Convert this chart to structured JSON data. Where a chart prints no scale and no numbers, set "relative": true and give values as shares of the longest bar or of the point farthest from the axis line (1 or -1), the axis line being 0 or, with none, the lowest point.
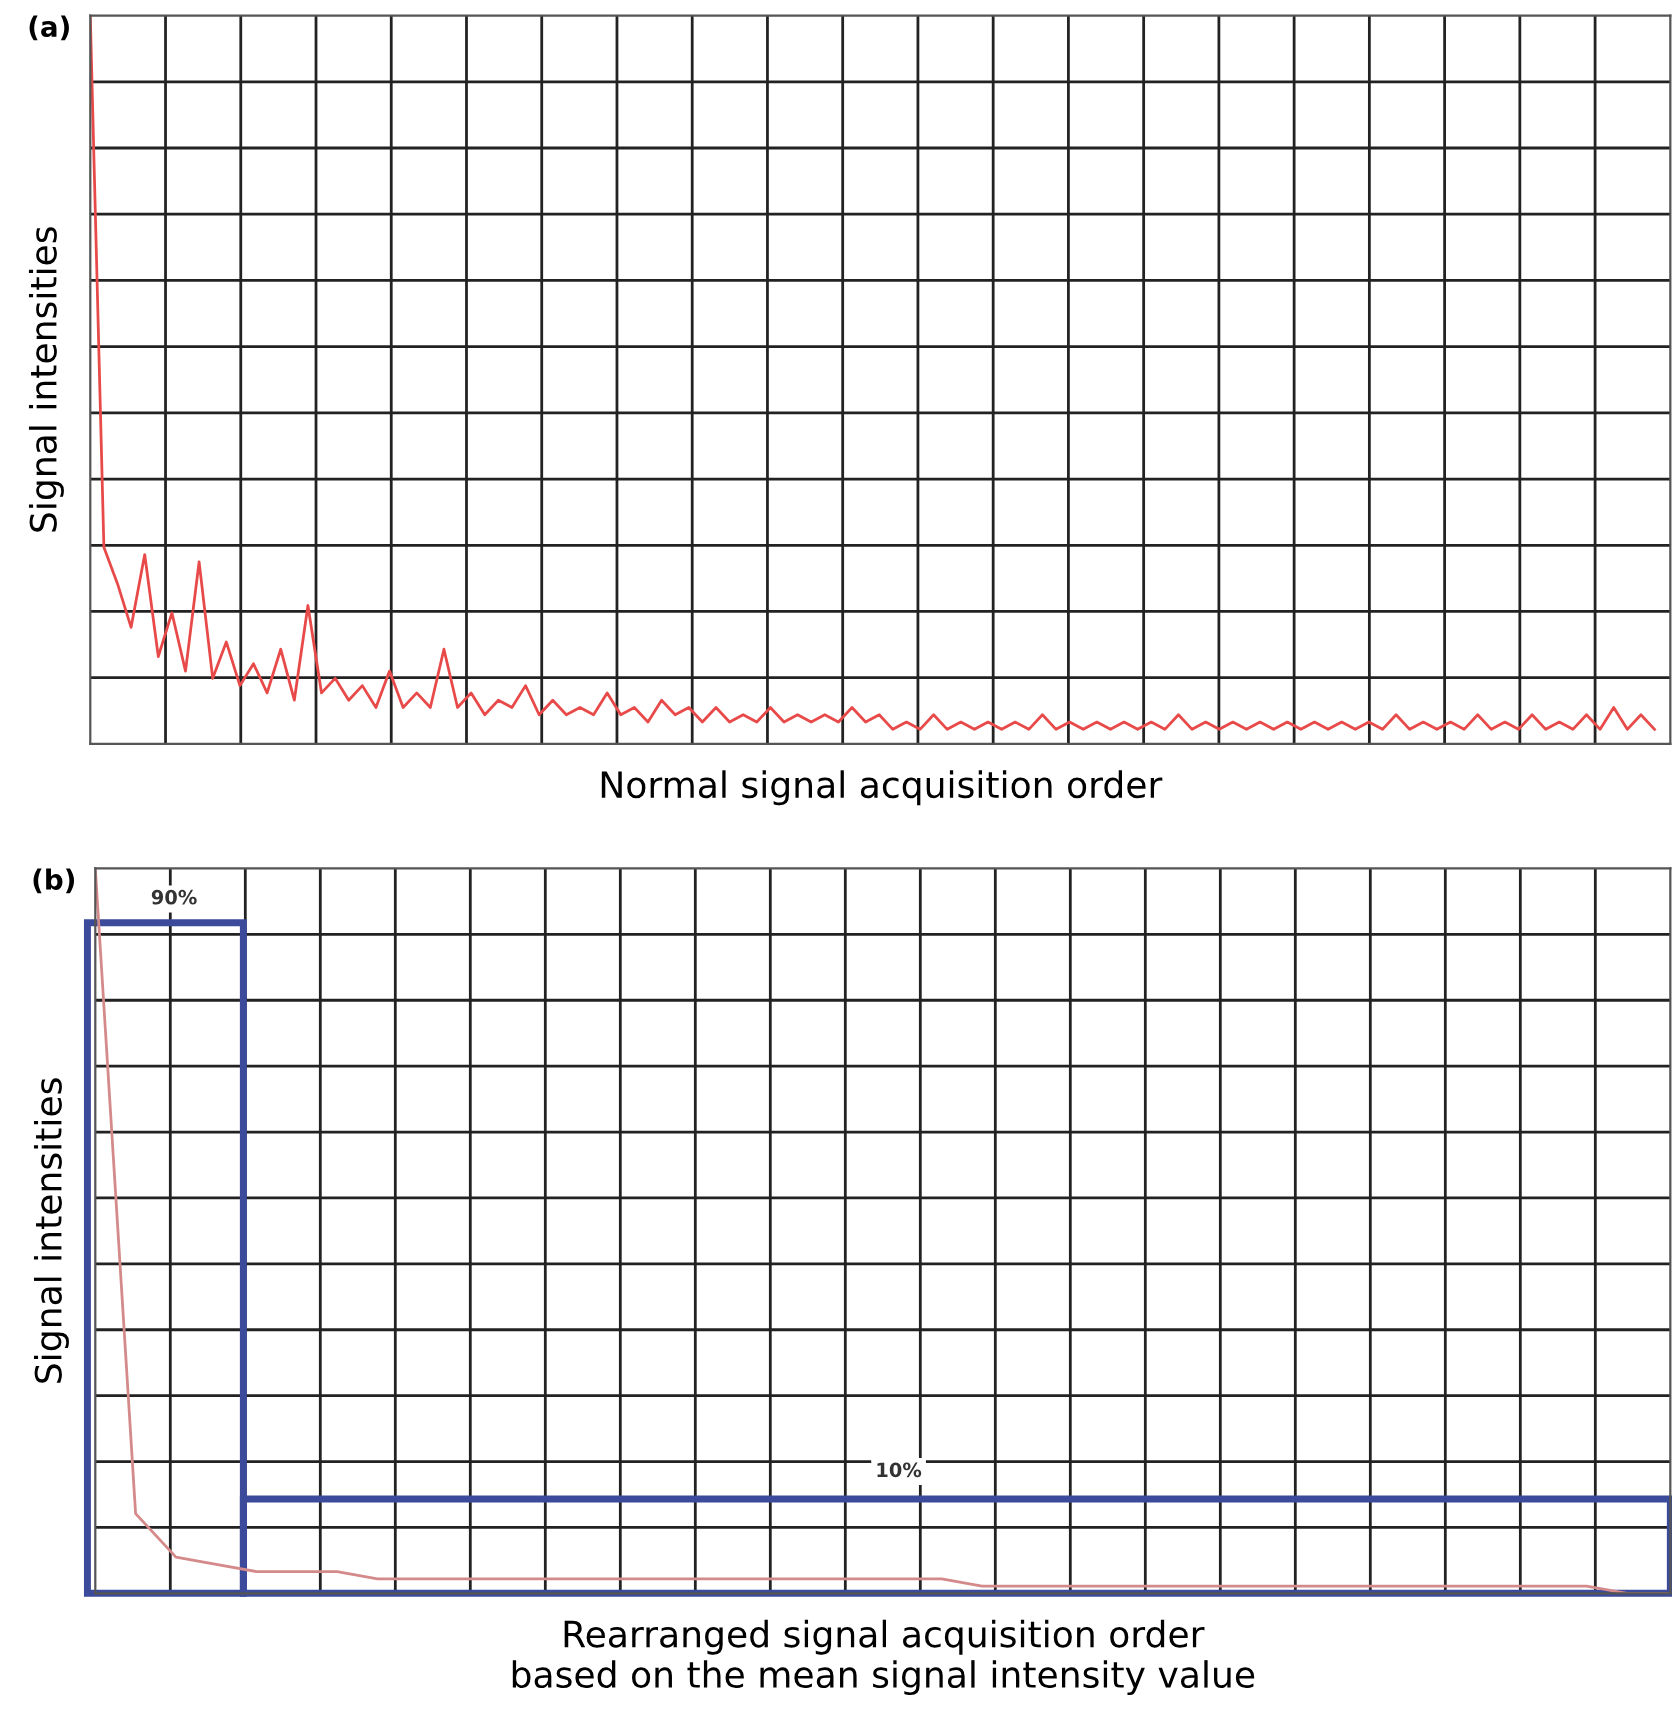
{
  "chart_data": [
    {
      "type": "line",
      "title": "(a)",
      "xlabel": "Normal signal acquisition order",
      "ylabel": "Signal intensities",
      "relative": true,
      "grid": true,
      "legend": false,
      "categories": [
        null,
        null,
        null,
        null,
        null,
        null,
        null,
        null,
        null,
        null,
        null,
        null,
        null,
        null,
        null,
        null,
        null,
        null,
        null,
        null,
        null,
        null,
        null,
        null,
        null,
        null,
        null,
        null,
        null,
        null,
        null,
        null,
        null,
        null,
        null,
        null,
        null,
        null,
        null,
        null,
        null,
        null,
        null,
        null,
        null,
        null,
        null,
        null,
        null,
        null,
        null,
        null,
        null,
        null,
        null,
        null,
        null,
        null,
        null,
        null,
        null,
        null,
        null,
        null,
        null,
        null,
        null,
        null,
        null,
        null,
        null,
        null,
        null,
        null,
        null,
        null,
        null,
        null,
        null,
        null,
        null,
        null,
        null,
        null,
        null,
        null,
        null,
        null,
        null,
        null,
        null,
        null,
        null,
        null,
        null,
        null,
        null,
        null,
        null,
        null,
        null,
        null,
        null,
        null,
        null,
        null,
        null,
        null,
        null,
        null,
        null,
        null,
        null,
        null,
        null,
        null
      ],
      "series": [
        {
          "color": "#e84a4a",
          "values": [
            1.0,
            0.27,
            0.22,
            0.16,
            0.26,
            0.12,
            0.18,
            0.1,
            0.25,
            0.09,
            0.14,
            0.08,
            0.11,
            0.07,
            0.13,
            0.06,
            0.19,
            0.07,
            0.09,
            0.06,
            0.08,
            0.05,
            0.1,
            0.05,
            0.07,
            0.05,
            0.13,
            0.05,
            0.07,
            0.04,
            0.06,
            0.05,
            0.08,
            0.04,
            0.06,
            0.04,
            0.05,
            0.04,
            0.07,
            0.04,
            0.05,
            0.03,
            0.06,
            0.04,
            0.05,
            0.03,
            0.05,
            0.03,
            0.04,
            0.03,
            0.05,
            0.03,
            0.04,
            0.03,
            0.04,
            0.03,
            0.05,
            0.03,
            0.04,
            0.02,
            0.03,
            0.02,
            0.04,
            0.02,
            0.03,
            0.02,
            0.03,
            0.02,
            0.03,
            0.02,
            0.04,
            0.02,
            0.03,
            0.02,
            0.03,
            0.02,
            0.03,
            0.02,
            0.03,
            0.02,
            0.04,
            0.02,
            0.03,
            0.02,
            0.03,
            0.02,
            0.03,
            0.02,
            0.03,
            0.02,
            0.03,
            0.02,
            0.03,
            0.02,
            0.03,
            0.02,
            0.04,
            0.02,
            0.03,
            0.02,
            0.03,
            0.02,
            0.04,
            0.02,
            0.03,
            0.02,
            0.04,
            0.02,
            0.03,
            0.02,
            0.04,
            0.02,
            0.05,
            0.02,
            0.04,
            0.02
          ]
        }
      ]
    },
    {
      "type": "line",
      "title": "(b)",
      "xlabel": "Rearranged signal acquisition order\nbased on the mean signal intensity value",
      "ylabel": "Signal intensities",
      "relative": true,
      "grid": true,
      "legend": false,
      "annotations": [
        "90%",
        "10%"
      ],
      "categories": [
        null,
        null,
        null,
        null,
        null,
        null,
        null,
        null,
        null,
        null,
        null,
        null,
        null,
        null,
        null,
        null,
        null,
        null,
        null,
        null,
        null,
        null,
        null,
        null,
        null,
        null,
        null,
        null,
        null,
        null,
        null,
        null,
        null,
        null,
        null,
        null,
        null,
        null,
        null,
        null
      ],
      "series": [
        {
          "color": "#d48a8a",
          "values": [
            1.0,
            0.11,
            0.05,
            0.04,
            0.03,
            0.03,
            0.03,
            0.02,
            0.02,
            0.02,
            0.02,
            0.02,
            0.02,
            0.02,
            0.02,
            0.02,
            0.02,
            0.02,
            0.02,
            0.02,
            0.02,
            0.02,
            0.01,
            0.01,
            0.01,
            0.01,
            0.01,
            0.01,
            0.01,
            0.01,
            0.01,
            0.01,
            0.01,
            0.01,
            0.01,
            0.01,
            0.01,
            0.01,
            0.0,
            0.0
          ]
        }
      ]
    }
  ]
}
